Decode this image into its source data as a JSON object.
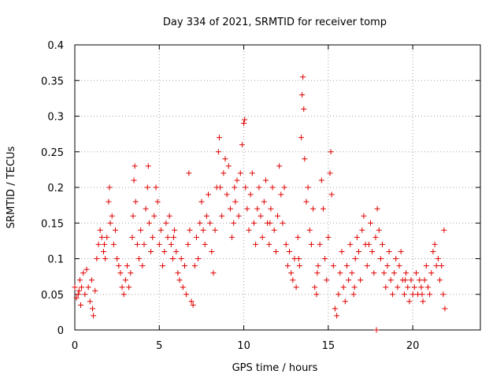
{
  "chart_data": {
    "type": "scatter",
    "title": "Day 334 of 2021, SRMTID for receiver tomp",
    "xlabel": "GPS time / hours",
    "ylabel": "SRMTID / TECUs",
    "xlim": [
      0,
      24
    ],
    "ylim": [
      0,
      0.4
    ],
    "xticks": [
      0,
      5,
      10,
      15,
      20
    ],
    "yticks": [
      0,
      0.05,
      0.1,
      0.15,
      0.2,
      0.25,
      0.3,
      0.35,
      0.4
    ],
    "xtick_labels": [
      "0",
      "5",
      "10",
      "15",
      "20"
    ],
    "ytick_labels": [
      "0",
      "0.05",
      "0.1",
      "0.15",
      "0.2",
      "0.25",
      "0.3",
      "0.35",
      "0.4"
    ],
    "grid": true,
    "marker": "+",
    "marker_color": "#e00000",
    "series": [
      {
        "name": "SRMTID",
        "points": [
          [
            0.0,
            0.06
          ],
          [
            0.1,
            0.045
          ],
          [
            0.2,
            0.05
          ],
          [
            0.3,
            0.07
          ],
          [
            0.35,
            0.035
          ],
          [
            0.4,
            0.06
          ],
          [
            0.5,
            0.08
          ],
          [
            0.6,
            0.05
          ],
          [
            0.7,
            0.085
          ],
          [
            0.8,
            0.06
          ],
          [
            0.9,
            0.04
          ],
          [
            1.0,
            0.07
          ],
          [
            1.05,
            0.03
          ],
          [
            1.1,
            0.02
          ],
          [
            1.2,
            0.055
          ],
          [
            1.3,
            0.1
          ],
          [
            1.4,
            0.12
          ],
          [
            1.5,
            0.14
          ],
          [
            1.6,
            0.13
          ],
          [
            1.7,
            0.11
          ],
          [
            1.8,
            0.1
          ],
          [
            1.9,
            0.13
          ],
          [
            2.0,
            0.18
          ],
          [
            2.05,
            0.2
          ],
          [
            2.1,
            0.15
          ],
          [
            2.2,
            0.16
          ],
          [
            2.3,
            0.12
          ],
          [
            2.4,
            0.14
          ],
          [
            2.5,
            0.1
          ],
          [
            2.6,
            0.09
          ],
          [
            2.7,
            0.08
          ],
          [
            2.8,
            0.06
          ],
          [
            2.9,
            0.05
          ],
          [
            3.0,
            0.07
          ],
          [
            3.1,
            0.09
          ],
          [
            3.2,
            0.06
          ],
          [
            3.3,
            0.08
          ],
          [
            3.4,
            0.13
          ],
          [
            3.45,
            0.16
          ],
          [
            3.5,
            0.21
          ],
          [
            3.55,
            0.23
          ],
          [
            3.6,
            0.18
          ],
          [
            3.7,
            0.12
          ],
          [
            3.8,
            0.1
          ],
          [
            3.9,
            0.14
          ],
          [
            4.0,
            0.09
          ],
          [
            4.1,
            0.12
          ],
          [
            4.2,
            0.17
          ],
          [
            4.3,
            0.2
          ],
          [
            4.35,
            0.23
          ],
          [
            4.4,
            0.15
          ],
          [
            4.5,
            0.11
          ],
          [
            4.6,
            0.13
          ],
          [
            4.7,
            0.16
          ],
          [
            4.8,
            0.2
          ],
          [
            4.9,
            0.18
          ],
          [
            5.0,
            0.12
          ],
          [
            5.1,
            0.14
          ],
          [
            5.2,
            0.09
          ],
          [
            5.3,
            0.11
          ],
          [
            5.4,
            0.15
          ],
          [
            5.5,
            0.13
          ],
          [
            5.6,
            0.16
          ],
          [
            5.7,
            0.12
          ],
          [
            5.8,
            0.1
          ],
          [
            5.9,
            0.14
          ],
          [
            6.0,
            0.11
          ],
          [
            6.1,
            0.08
          ],
          [
            6.2,
            0.07
          ],
          [
            6.3,
            0.1
          ],
          [
            6.4,
            0.06
          ],
          [
            6.5,
            0.09
          ],
          [
            6.6,
            0.05
          ],
          [
            6.7,
            0.12
          ],
          [
            6.75,
            0.22
          ],
          [
            6.8,
            0.14
          ],
          [
            6.9,
            0.04
          ],
          [
            7.0,
            0.035
          ],
          [
            7.1,
            0.09
          ],
          [
            7.2,
            0.13
          ],
          [
            7.3,
            0.1
          ],
          [
            7.4,
            0.15
          ],
          [
            7.5,
            0.18
          ],
          [
            7.6,
            0.14
          ],
          [
            7.7,
            0.12
          ],
          [
            7.8,
            0.16
          ],
          [
            7.9,
            0.19
          ],
          [
            8.0,
            0.15
          ],
          [
            8.1,
            0.11
          ],
          [
            8.2,
            0.08
          ],
          [
            8.3,
            0.14
          ],
          [
            8.4,
            0.2
          ],
          [
            8.5,
            0.25
          ],
          [
            8.55,
            0.27
          ],
          [
            8.6,
            0.2
          ],
          [
            8.7,
            0.16
          ],
          [
            8.8,
            0.22
          ],
          [
            8.9,
            0.24
          ],
          [
            9.0,
            0.19
          ],
          [
            9.1,
            0.23
          ],
          [
            9.2,
            0.17
          ],
          [
            9.3,
            0.13
          ],
          [
            9.4,
            0.15
          ],
          [
            9.5,
            0.18
          ],
          [
            9.6,
            0.21
          ],
          [
            9.7,
            0.16
          ],
          [
            9.8,
            0.22
          ],
          [
            9.9,
            0.26
          ],
          [
            10.0,
            0.29
          ],
          [
            10.05,
            0.295
          ],
          [
            10.1,
            0.2
          ],
          [
            10.2,
            0.17
          ],
          [
            10.3,
            0.14
          ],
          [
            10.4,
            0.19
          ],
          [
            10.5,
            0.22
          ],
          [
            10.6,
            0.15
          ],
          [
            10.7,
            0.12
          ],
          [
            10.8,
            0.17
          ],
          [
            10.9,
            0.2
          ],
          [
            11.0,
            0.16
          ],
          [
            11.1,
            0.13
          ],
          [
            11.2,
            0.18
          ],
          [
            11.3,
            0.21
          ],
          [
            11.4,
            0.15
          ],
          [
            11.5,
            0.12
          ],
          [
            11.6,
            0.17
          ],
          [
            11.7,
            0.2
          ],
          [
            11.8,
            0.14
          ],
          [
            11.9,
            0.11
          ],
          [
            12.0,
            0.16
          ],
          [
            12.1,
            0.23
          ],
          [
            12.2,
            0.19
          ],
          [
            12.3,
            0.15
          ],
          [
            12.4,
            0.2
          ],
          [
            12.5,
            0.12
          ],
          [
            12.6,
            0.09
          ],
          [
            12.7,
            0.11
          ],
          [
            12.8,
            0.08
          ],
          [
            12.9,
            0.07
          ],
          [
            13.0,
            0.1
          ],
          [
            13.1,
            0.06
          ],
          [
            13.2,
            0.13
          ],
          [
            13.3,
            0.09
          ],
          [
            13.4,
            0.27
          ],
          [
            13.45,
            0.33
          ],
          [
            13.5,
            0.355
          ],
          [
            13.55,
            0.31
          ],
          [
            13.6,
            0.24
          ],
          [
            13.7,
            0.18
          ],
          [
            13.8,
            0.2
          ],
          [
            13.9,
            0.14
          ],
          [
            14.0,
            0.12
          ],
          [
            14.1,
            0.17
          ],
          [
            14.2,
            0.06
          ],
          [
            14.3,
            0.05
          ],
          [
            14.4,
            0.09
          ],
          [
            14.5,
            0.12
          ],
          [
            14.6,
            0.21
          ],
          [
            14.7,
            0.17
          ],
          [
            14.8,
            0.1
          ],
          [
            14.9,
            0.07
          ],
          [
            15.0,
            0.13
          ],
          [
            15.1,
            0.22
          ],
          [
            15.15,
            0.25
          ],
          [
            15.2,
            0.19
          ],
          [
            15.3,
            0.09
          ],
          [
            15.4,
            0.03
          ],
          [
            15.5,
            0.02
          ],
          [
            15.6,
            0.05
          ],
          [
            15.7,
            0.08
          ],
          [
            15.8,
            0.11
          ],
          [
            15.9,
            0.06
          ],
          [
            16.0,
            0.04
          ],
          [
            16.1,
            0.09
          ],
          [
            16.2,
            0.07
          ],
          [
            16.3,
            0.12
          ],
          [
            16.4,
            0.08
          ],
          [
            16.5,
            0.05
          ],
          [
            16.6,
            0.1
          ],
          [
            16.7,
            0.13
          ],
          [
            16.8,
            0.11
          ],
          [
            16.9,
            0.07
          ],
          [
            17.0,
            0.14
          ],
          [
            17.1,
            0.16
          ],
          [
            17.2,
            0.12
          ],
          [
            17.3,
            0.09
          ],
          [
            17.4,
            0.12
          ],
          [
            17.5,
            0.15
          ],
          [
            17.6,
            0.11
          ],
          [
            17.7,
            0.08
          ],
          [
            17.8,
            0.13
          ],
          [
            17.9,
            0.17
          ],
          [
            18.0,
            0.14
          ],
          [
            18.1,
            0.1
          ],
          [
            18.2,
            0.12
          ],
          [
            18.3,
            0.08
          ],
          [
            18.4,
            0.06
          ],
          [
            18.5,
            0.09
          ],
          [
            18.6,
            0.11
          ],
          [
            18.7,
            0.07
          ],
          [
            18.8,
            0.05
          ],
          [
            18.9,
            0.08
          ],
          [
            19.0,
            0.1
          ],
          [
            19.1,
            0.06
          ],
          [
            19.2,
            0.09
          ],
          [
            19.3,
            0.11
          ],
          [
            19.4,
            0.07
          ],
          [
            19.5,
            0.05
          ],
          [
            19.6,
            0.08
          ],
          [
            19.7,
            0.06
          ],
          [
            19.8,
            0.04
          ],
          [
            19.9,
            0.07
          ],
          [
            20.0,
            0.05
          ],
          [
            20.1,
            0.06
          ],
          [
            20.2,
            0.08
          ],
          [
            20.3,
            0.05
          ],
          [
            20.4,
            0.07
          ],
          [
            20.5,
            0.06
          ],
          [
            20.6,
            0.04
          ],
          [
            20.7,
            0.07
          ],
          [
            20.8,
            0.09
          ],
          [
            20.9,
            0.06
          ],
          [
            21.0,
            0.05
          ],
          [
            21.1,
            0.08
          ],
          [
            21.2,
            0.11
          ],
          [
            21.3,
            0.12
          ],
          [
            21.4,
            0.09
          ],
          [
            21.5,
            0.1
          ],
          [
            21.6,
            0.07
          ],
          [
            21.7,
            0.09
          ],
          [
            21.8,
            0.05
          ],
          [
            21.85,
            0.14
          ],
          [
            21.9,
            0.03
          ],
          [
            17.85,
            0.0
          ],
          [
            0.25,
            0.055
          ],
          [
            1.75,
            0.12
          ],
          [
            5.85,
            0.13
          ],
          [
            9.45,
            0.2
          ],
          [
            11.55,
            0.15
          ],
          [
            13.25,
            0.1
          ],
          [
            14.35,
            0.08
          ],
          [
            16.55,
            0.06
          ],
          [
            19.55,
            0.07
          ],
          [
            20.55,
            0.05
          ]
        ]
      }
    ]
  }
}
